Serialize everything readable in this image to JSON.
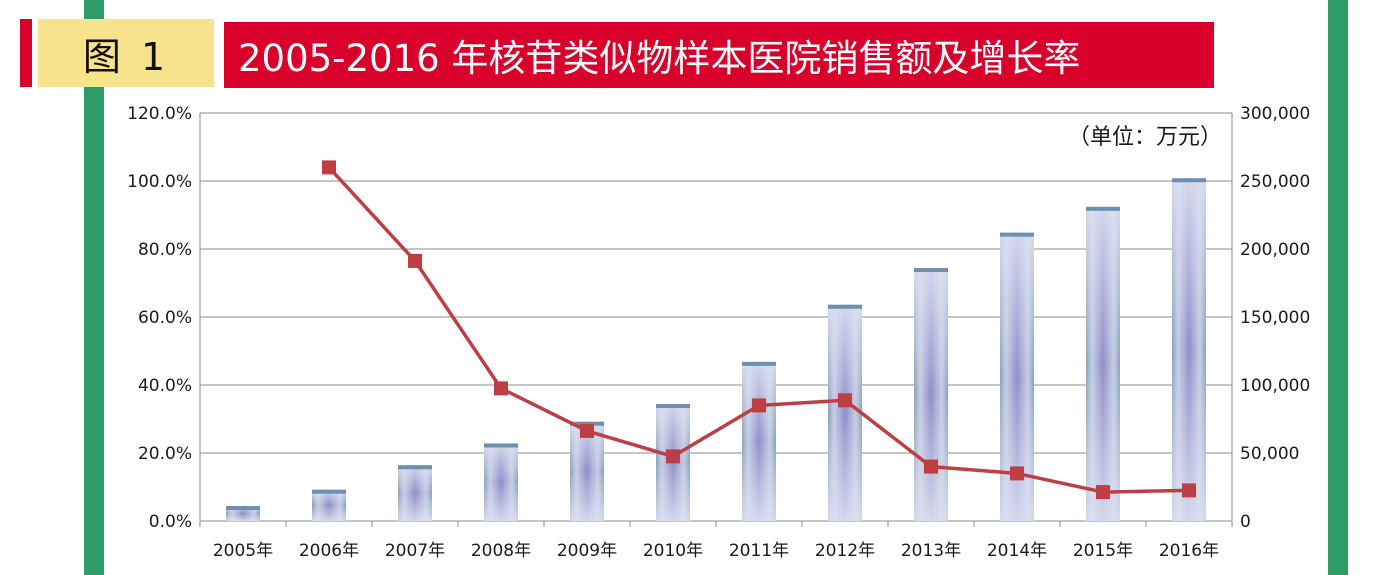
{
  "header": {
    "figure_label": "图 1",
    "title": "2005-2016 年核苷类似物样本医院销售额及增长率"
  },
  "colors": {
    "green_bar": "#2e9c69",
    "red": "#d8002a",
    "badge_yellow": "#f8e38d",
    "line": "#bd3f44",
    "grid": "#8c8c8c"
  },
  "chart_data": {
    "type": "bar",
    "unit_label": "（单位：万元）",
    "categories": [
      "2005年",
      "2006年",
      "2007年",
      "2008年",
      "2009年",
      "2010年",
      "2011年",
      "2012年",
      "2013年",
      "2014年",
      "2015年",
      "2016年"
    ],
    "series": [
      {
        "type": "bar",
        "axis": "right",
        "values": [
          11000,
          23000,
          41000,
          57000,
          73000,
          86000,
          117000,
          159000,
          186000,
          212000,
          231000,
          252000
        ]
      },
      {
        "type": "line",
        "axis": "left",
        "values": [
          null,
          104.0,
          76.5,
          39.0,
          26.5,
          19.0,
          34.0,
          35.5,
          16.0,
          14.0,
          8.5,
          9.0
        ]
      }
    ],
    "y_left": {
      "min": 0,
      "max": 120,
      "ticks": [
        "0.0%",
        "20.0%",
        "40.0%",
        "60.0%",
        "80.0%",
        "100.0%",
        "120.0%"
      ]
    },
    "y_right": {
      "min": 0,
      "max": 300000,
      "ticks": [
        "0",
        "50,000",
        "100,000",
        "150,000",
        "200,000",
        "250,000",
        "300,000"
      ]
    },
    "grid": true,
    "legend": "none"
  }
}
